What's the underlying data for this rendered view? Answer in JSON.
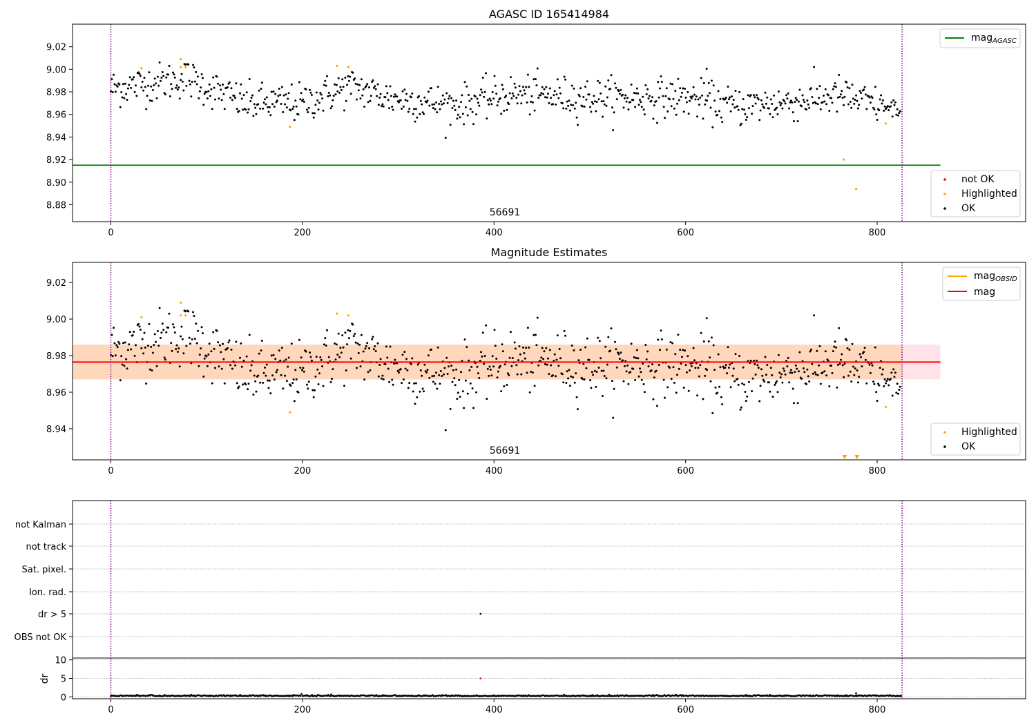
{
  "colors": {
    "ok": "#000000",
    "highlighted": "#ffa500",
    "not_ok": "#ff0000",
    "agasc_line": "#008000",
    "obsid_line": "#ffa500",
    "mag_line": "#ff0000",
    "band": "#ffc0cb",
    "band_inner": "#ffd5b5",
    "vline": "#800080"
  },
  "chart_data": [
    {
      "type": "scatter",
      "title": "AGASC ID 165414984",
      "xlim": [
        -40,
        955
      ],
      "ylim": [
        8.865,
        9.04
      ],
      "xticks": [
        0,
        200,
        400,
        600,
        800
      ],
      "yticks": [
        8.88,
        8.9,
        8.92,
        8.94,
        8.96,
        8.98,
        9.0,
        9.02
      ],
      "obsid_label": "56691",
      "vlines_x": [
        0,
        826
      ],
      "hline": {
        "name": "mag",
        "subscript": "AGASC",
        "y": 8.915,
        "x_range": [
          -40,
          866
        ]
      },
      "legend_upper": [
        {
          "label": "mag",
          "subscript": "AGASC"
        }
      ],
      "legend_lower": [
        {
          "label": "not OK"
        },
        {
          "label": "Highlighted"
        },
        {
          "label": "OK"
        }
      ],
      "ok_points": {
        "x_range": [
          0,
          824
        ],
        "count": 826,
        "description": "black dots scattered around 8.985 at start trending to 8.970"
      },
      "highlighted_points": [
        {
          "x": 32,
          "y": 9.001
        },
        {
          "x": 73,
          "y": 9.009
        },
        {
          "x": 73,
          "y": 9.002
        },
        {
          "x": 78,
          "y": 9.002
        },
        {
          "x": 187,
          "y": 8.949
        },
        {
          "x": 236,
          "y": 9.003
        },
        {
          "x": 248,
          "y": 9.002
        },
        {
          "x": 765,
          "y": 8.92
        },
        {
          "x": 778,
          "y": 8.894
        },
        {
          "x": 809,
          "y": 8.952
        }
      ],
      "ymodel": {
        "segments": [
          [
            0,
            8.983
          ],
          [
            80,
            8.992
          ],
          [
            140,
            8.97
          ],
          [
            200,
            8.97
          ],
          [
            250,
            8.985
          ],
          [
            290,
            8.975
          ],
          [
            360,
            8.968
          ],
          [
            420,
            8.978
          ],
          [
            500,
            8.975
          ],
          [
            600,
            8.975
          ],
          [
            650,
            8.967
          ],
          [
            700,
            8.97
          ],
          [
            760,
            8.977
          ],
          [
            826,
            8.962
          ]
        ],
        "sigma": 0.009
      }
    },
    {
      "type": "scatter",
      "title": "Magnitude Estimates",
      "xlim": [
        -40,
        955
      ],
      "ylim": [
        8.923,
        9.031
      ],
      "xticks": [
        0,
        200,
        400,
        600,
        800
      ],
      "yticks": [
        8.94,
        8.96,
        8.98,
        9.0,
        9.02
      ],
      "obsid_label": "56691",
      "vlines_x": [
        0,
        826
      ],
      "mag_line": {
        "name": "mag",
        "y": 8.9765,
        "x_range": [
          -40,
          866
        ]
      },
      "band": {
        "y0": 8.967,
        "y1": 8.986,
        "x_range": [
          -40,
          866
        ]
      },
      "inner_band": {
        "y0": 8.967,
        "y1": 8.986,
        "x_range": [
          -40,
          826
        ]
      },
      "legend_upper": [
        {
          "label": "mag",
          "subscript": "OBSID"
        },
        {
          "label": "mag"
        }
      ],
      "legend_lower": [
        {
          "label": "Highlighted"
        },
        {
          "label": "OK"
        }
      ],
      "highlighted_points": [
        {
          "x": 32,
          "y": 9.001
        },
        {
          "x": 73,
          "y": 9.009
        },
        {
          "x": 73,
          "y": 9.002
        },
        {
          "x": 78,
          "y": 9.002
        },
        {
          "x": 187,
          "y": 8.949
        },
        {
          "x": 236,
          "y": 9.003
        },
        {
          "x": 248,
          "y": 9.002
        },
        {
          "x": 809,
          "y": 8.952
        }
      ],
      "offscale_markers_x": [
        766,
        779
      ]
    },
    {
      "type": "scatter",
      "title": "",
      "categories": [
        "not Kalman",
        "not track",
        "Sat. pixel.",
        "Ion. rad.",
        "dr > 5",
        "OBS not OK"
      ],
      "xlim": [
        -40,
        955
      ],
      "vlines_x": [
        0,
        826
      ],
      "flag_points": [
        {
          "category": "dr > 5",
          "x": 386
        }
      ]
    },
    {
      "type": "scatter",
      "title": "",
      "ylabel": "dr",
      "xlim": [
        -40,
        955
      ],
      "ylim": [
        -0.5,
        10.5
      ],
      "xticks": [
        0,
        200,
        400,
        600,
        800
      ],
      "yticks": [
        0,
        5,
        10
      ],
      "vlines_x": [
        0,
        826
      ],
      "dr_baseline": 0.2,
      "dr_outliers": [
        {
          "x": 386,
          "y": 5.0,
          "color": "red"
        },
        {
          "x": 778,
          "y": 1.0,
          "color": "black"
        }
      ]
    }
  ]
}
